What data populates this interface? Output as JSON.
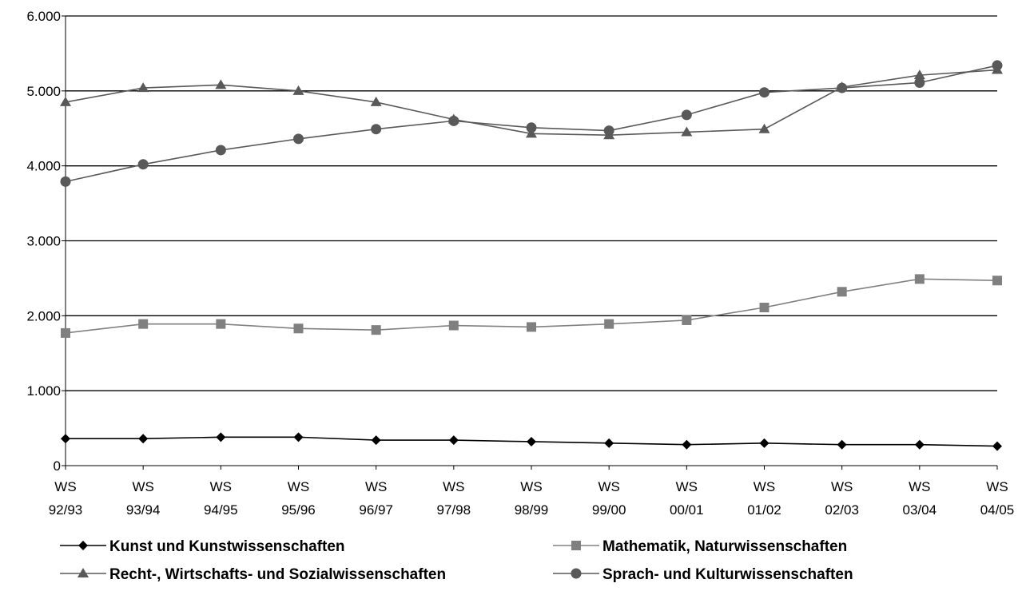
{
  "chart_data": {
    "type": "line",
    "title": "",
    "xlabel": "",
    "ylabel": "",
    "ylim": [
      0,
      6000
    ],
    "y_ticks": [
      0,
      1000,
      2000,
      3000,
      4000,
      5000,
      6000
    ],
    "y_tick_labels": [
      "0",
      "1.000",
      "2.000",
      "3.000",
      "4.000",
      "5.000",
      "6.000"
    ],
    "grid": "horizontal",
    "legend_position": "bottom",
    "categories": [
      [
        "WS",
        "92/93"
      ],
      [
        "WS",
        "93/94"
      ],
      [
        "WS",
        "94/95"
      ],
      [
        "WS",
        "95/96"
      ],
      [
        "WS",
        "96/97"
      ],
      [
        "WS",
        "97/98"
      ],
      [
        "WS",
        "98/99"
      ],
      [
        "WS",
        "99/00"
      ],
      [
        "WS",
        "00/01"
      ],
      [
        "WS",
        "01/02"
      ],
      [
        "WS",
        "02/03"
      ],
      [
        "WS",
        "03/04"
      ],
      [
        "WS",
        "04/05"
      ]
    ],
    "series": [
      {
        "name": "Kunst und Kunstwissenschaften",
        "color": "#000000",
        "marker": "diamond",
        "values": [
          360,
          360,
          380,
          380,
          340,
          340,
          320,
          300,
          280,
          300,
          280,
          280,
          260
        ]
      },
      {
        "name": "Mathematik, Naturwissenschaften",
        "color": "#808080",
        "marker": "square",
        "values": [
          1770,
          1890,
          1890,
          1830,
          1810,
          1870,
          1850,
          1890,
          1940,
          2110,
          2320,
          2490,
          2470
        ]
      },
      {
        "name": "Recht-, Wirtschafts- und Sozialwissenschaften",
        "color": "#595959",
        "marker": "triangle",
        "values": [
          4850,
          5040,
          5080,
          5000,
          4850,
          4620,
          4430,
          4410,
          4450,
          4490,
          5050,
          5210,
          5280
        ]
      },
      {
        "name": "Sprach- und Kulturwissenschaften",
        "color": "#595959",
        "marker": "circle",
        "values": [
          3790,
          4020,
          4210,
          4360,
          4490,
          4600,
          4510,
          4470,
          4680,
          4980,
          5040,
          5110,
          5340
        ]
      }
    ]
  }
}
